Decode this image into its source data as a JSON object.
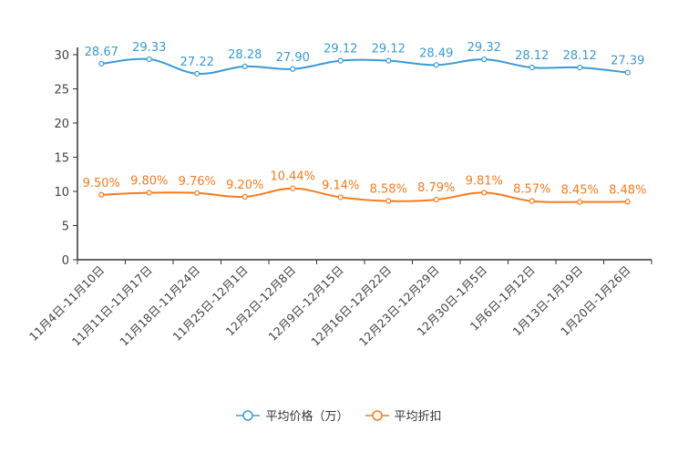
{
  "chart_data": {
    "type": "line",
    "categories": [
      "11月4日-11月10日",
      "11月11日-11月17日",
      "11月18日-11月24日",
      "11月25日-12月1日",
      "12月2日-12月8日",
      "12月9日-12月15日",
      "12月16日-12月22日",
      "12月23日-12月29日",
      "12月30日-1月5日",
      "1月6日-1月12日",
      "1月13日-1月19日",
      "1月20日-1月26日"
    ],
    "ylim": [
      0,
      30
    ],
    "yticks": [
      0,
      5,
      10,
      15,
      20,
      25,
      30
    ],
    "grid": false,
    "legend_position": "bottom",
    "series": [
      {
        "name": "平均价格（万）",
        "color": "#3b9ad5",
        "values": [
          28.67,
          29.33,
          27.22,
          28.28,
          27.9,
          29.12,
          29.12,
          28.49,
          29.32,
          28.12,
          28.12,
          27.39
        ],
        "labels": [
          "28.67",
          "29.33",
          "27.22",
          "28.28",
          "27.90",
          "29.12",
          "29.12",
          "28.49",
          "29.32",
          "28.12",
          "28.12",
          "27.39"
        ]
      },
      {
        "name": "平均折扣",
        "color": "#f67b1d",
        "values": [
          9.5,
          9.8,
          9.76,
          9.2,
          10.44,
          9.14,
          8.58,
          8.79,
          9.81,
          8.57,
          8.45,
          8.48
        ],
        "labels": [
          "9.50%",
          "9.80%",
          "9.76%",
          "9.20%",
          "10.44%",
          "9.14%",
          "8.58%",
          "8.79%",
          "9.81%",
          "8.57%",
          "8.45%",
          "8.48%"
        ]
      }
    ]
  }
}
